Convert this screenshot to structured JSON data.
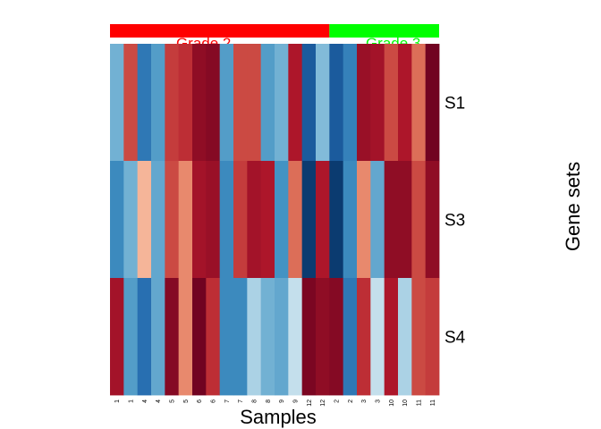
{
  "chart_data": {
    "type": "heatmap",
    "xlabel": "Samples",
    "ylabel": "Gene sets",
    "rows": [
      "S1",
      "S3",
      "S4"
    ],
    "columns": [
      "1",
      "1",
      "4",
      "4",
      "5",
      "5",
      "6",
      "6",
      "7",
      "7",
      "8",
      "8",
      "9",
      "9",
      "12",
      "12",
      "2",
      "2",
      "3",
      "3",
      "10",
      "10",
      "11",
      "11"
    ],
    "color_scale": {
      "low": "#053061",
      "mid_low": "#92c5de",
      "mid": "#f7f7f7",
      "mid_high": "#f4a582",
      "high": "#67001f",
      "range": [
        -2,
        2
      ]
    },
    "values": [
      [
        -0.7,
        0.9,
        -1.3,
        -0.9,
        1.0,
        1.1,
        1.6,
        1.7,
        -0.9,
        0.9,
        0.9,
        -0.9,
        -0.7,
        1.3,
        -1.6,
        -0.6,
        -1.6,
        -1.2,
        1.5,
        1.4,
        0.9,
        1.3,
        0.7,
        1.9
      ],
      [
        -1.1,
        -0.7,
        0.4,
        -0.8,
        0.9,
        0.6,
        1.4,
        1.5,
        -1.1,
        1.0,
        1.4,
        1.3,
        -1.0,
        0.7,
        -1.9,
        1.3,
        -1.9,
        -1.1,
        0.6,
        -0.8,
        1.6,
        1.6,
        0.9,
        1.6
      ],
      [
        1.4,
        -0.9,
        -1.4,
        -0.8,
        1.7,
        0.6,
        1.9,
        1.1,
        -1.1,
        -1.1,
        -0.4,
        -0.7,
        -0.8,
        -0.3,
        1.8,
        1.6,
        1.7,
        -1.3,
        1.1,
        -0.3,
        1.3,
        -0.4,
        0.9,
        1.0
      ]
    ],
    "annotation": {
      "groups": [
        {
          "name": "Grade 2",
          "color": "#ff0000",
          "count": 16
        },
        {
          "name": "Grade 3",
          "color": "#00ff00",
          "count": 8
        }
      ]
    }
  }
}
